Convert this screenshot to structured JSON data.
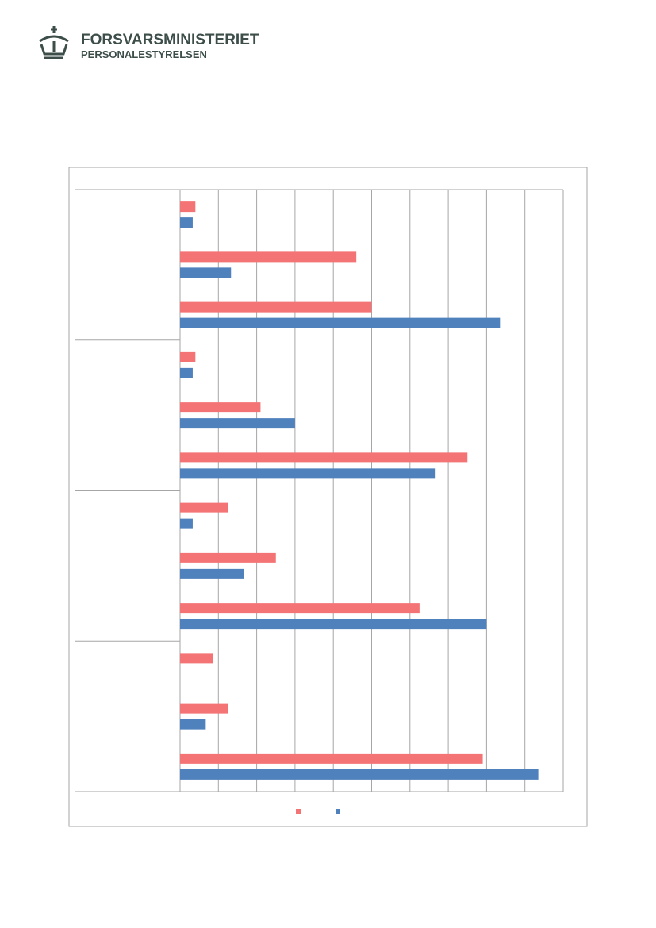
{
  "header": {
    "title": "FORSVARSMINISTERIET",
    "subtitle": "PERSONALESTYRELSEN"
  },
  "chart_data": {
    "type": "bar",
    "orientation": "horizontal",
    "categories": [
      null,
      null,
      null,
      null,
      null,
      null,
      null,
      null,
      null,
      null,
      null,
      null
    ],
    "series": [
      {
        "color": "#f47475",
        "values": [
          0.4,
          4.6,
          5.0,
          0.4,
          2.1,
          7.5,
          1.25,
          2.5,
          6.25,
          0.85,
          1.25,
          7.9
        ]
      },
      {
        "color": "#4f81bd",
        "values": [
          0.33,
          1.33,
          8.35,
          0.33,
          3.0,
          6.67,
          0.33,
          1.67,
          8.0,
          null,
          0.67,
          9.35
        ]
      }
    ],
    "xlim": [
      0,
      10
    ],
    "xticks": [
      0,
      1,
      2,
      3,
      4,
      5,
      6,
      7,
      8,
      9,
      10
    ],
    "grid": true
  }
}
